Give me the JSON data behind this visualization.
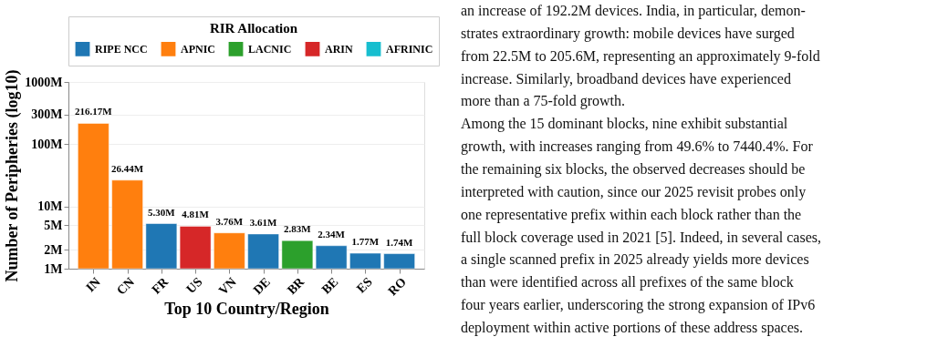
{
  "chart_data": {
    "type": "bar",
    "xlabel": "Top 10 Country/Region",
    "ylabel": "Number of Peripheries (log10)",
    "legend_title": "RIR Allocation",
    "legend": "top",
    "categories": [
      "IN",
      "CN",
      "FR",
      "US",
      "VN",
      "DE",
      "BR",
      "BE",
      "ES",
      "RO"
    ],
    "series": [
      {
        "name": "RIPE NCC",
        "color": "#1f77b4",
        "values": [
          null,
          null,
          5.3,
          null,
          null,
          3.61,
          null,
          2.34,
          1.77,
          1.74
        ]
      },
      {
        "name": "APNIC",
        "color": "#ff7f0e",
        "values": [
          216.17,
          26.44,
          null,
          null,
          3.76,
          null,
          null,
          null,
          null,
          null
        ]
      },
      {
        "name": "LACNIC",
        "color": "#2ca02c",
        "values": [
          null,
          null,
          null,
          null,
          null,
          null,
          2.83,
          null,
          null,
          null
        ]
      },
      {
        "name": "ARIN",
        "color": "#d62728",
        "values": [
          null,
          null,
          null,
          4.81,
          null,
          null,
          null,
          null,
          null,
          null
        ]
      },
      {
        "name": "AFRINIC",
        "color": "#17becf",
        "values": [
          null,
          null,
          null,
          null,
          null,
          null,
          null,
          null,
          null,
          null
        ]
      }
    ],
    "value_labels": [
      "216.17M",
      "26.44M",
      "5.30M",
      "4.81M",
      "3.76M",
      "3.61M",
      "2.83M",
      "2.34M",
      "1.77M",
      "1.74M"
    ],
    "log": "y",
    "ylim": [
      1,
      1000
    ],
    "yticks": [
      {
        "value": 1,
        "label": "1M"
      },
      {
        "value": 2,
        "label": "2M"
      },
      {
        "value": 5,
        "label": "5M"
      },
      {
        "value": 10,
        "label": "10M"
      },
      {
        "value": 100,
        "label": "100M"
      },
      {
        "value": 300,
        "label": "300M"
      },
      {
        "value": 1000,
        "label": "1000M"
      }
    ],
    "grid": "y",
    "annotations": [
      "an increase of 192.2M devices. India, in particular, demon-",
      "strates extraordinary growth: mobile devices have surged",
      "from 22.5M to 205.6M, representing an approximately 9-fold",
      "increase. Similarly, broadband devices have experienced",
      "more than a 75-fold growth.",
      "    Among the 15 dominant blocks, nine exhibit substantial",
      "growth, with increases ranging from 49.6% to 7440.4%. For",
      "the remaining six blocks, the observed decreases should be",
      "interpreted with caution, since our 2025 revisit probes only",
      "one representative prefix within each block rather than the",
      "full block coverage used in 2021 [5]. Indeed, in several cases,",
      "a single scanned prefix in 2025 already yields more devices",
      "than were identified across all prefixes of the same block",
      "four years earlier, underscoring the strong expansion of IPv6",
      "deployment within active portions of these address spaces."
    ]
  }
}
